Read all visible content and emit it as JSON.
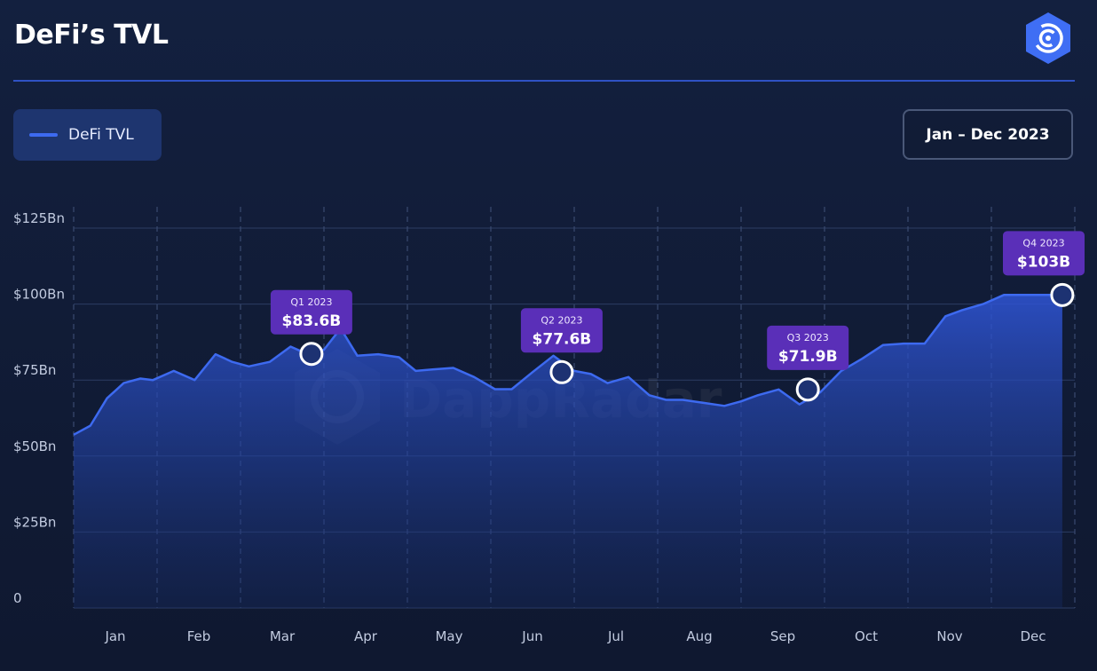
{
  "header": {
    "title": "DeFi’s TVL"
  },
  "legend": {
    "label": "DeFi TVL",
    "color": "#3d6af0"
  },
  "range_button": {
    "label": "Jan – Dec 2023"
  },
  "watermark": {
    "text": "DappRadar"
  },
  "chart_data": {
    "type": "area",
    "title": "",
    "xlabel": "",
    "ylabel": "",
    "ylim": [
      0,
      125
    ],
    "yticks": [
      {
        "value": 0,
        "label": "0"
      },
      {
        "value": 25,
        "label": "$25Bn"
      },
      {
        "value": 50,
        "label": "$50Bn"
      },
      {
        "value": 75,
        "label": "$75Bn"
      },
      {
        "value": 100,
        "label": "$100Bn"
      },
      {
        "value": 125,
        "label": "$125Bn"
      }
    ],
    "xlim": [
      0,
      12
    ],
    "months": [
      "Jan",
      "Feb",
      "Mar",
      "Apr",
      "May",
      "Jun",
      "Jul",
      "Aug",
      "Sep",
      "Oct",
      "Nov",
      "Dec"
    ],
    "grid": true,
    "legend_position": "top-left",
    "series": [
      {
        "name": "DeFi TVL",
        "color": "#3d6af0",
        "x": [
          0,
          0.2,
          0.4,
          0.6,
          0.8,
          0.95,
          1.2,
          1.45,
          1.7,
          1.9,
          2.1,
          2.35,
          2.6,
          2.8,
          3.0,
          3.2,
          3.4,
          3.65,
          3.9,
          4.1,
          4.3,
          4.55,
          4.8,
          5.05,
          5.25,
          5.5,
          5.75,
          6.0,
          6.2,
          6.4,
          6.65,
          6.9,
          7.1,
          7.3,
          7.55,
          7.8,
          8.0,
          8.2,
          8.45,
          8.7,
          8.95,
          9.2,
          9.45,
          9.7,
          9.95,
          10.2,
          10.45,
          10.65,
          10.9,
          11.15,
          11.4,
          11.65,
          11.85
        ],
        "values": [
          57,
          60,
          69,
          74,
          75.5,
          75,
          78,
          75,
          83.5,
          81,
          79.5,
          81,
          86,
          83.6,
          85,
          92,
          83,
          83.5,
          82.5,
          78,
          78.5,
          79,
          76,
          72,
          72,
          77.6,
          83,
          78,
          77,
          74,
          76,
          70,
          68.5,
          68.5,
          67.5,
          66.5,
          68,
          70,
          71.9,
          67,
          71,
          78,
          82,
          86.5,
          87,
          87,
          96,
          98,
          100,
          103,
          103,
          103,
          103
        ]
      }
    ],
    "annotations": [
      {
        "x": 2.85,
        "value": 83.6,
        "quarter": "Q1 2023",
        "label": "$83.6B"
      },
      {
        "x": 5.85,
        "value": 77.6,
        "quarter": "Q2 2023",
        "label": "$77.6B"
      },
      {
        "x": 8.8,
        "value": 71.9,
        "quarter": "Q3 2023",
        "label": "$71.9B"
      },
      {
        "x": 11.85,
        "value": 103,
        "quarter": "Q4 2023",
        "label": "$103B"
      }
    ]
  }
}
